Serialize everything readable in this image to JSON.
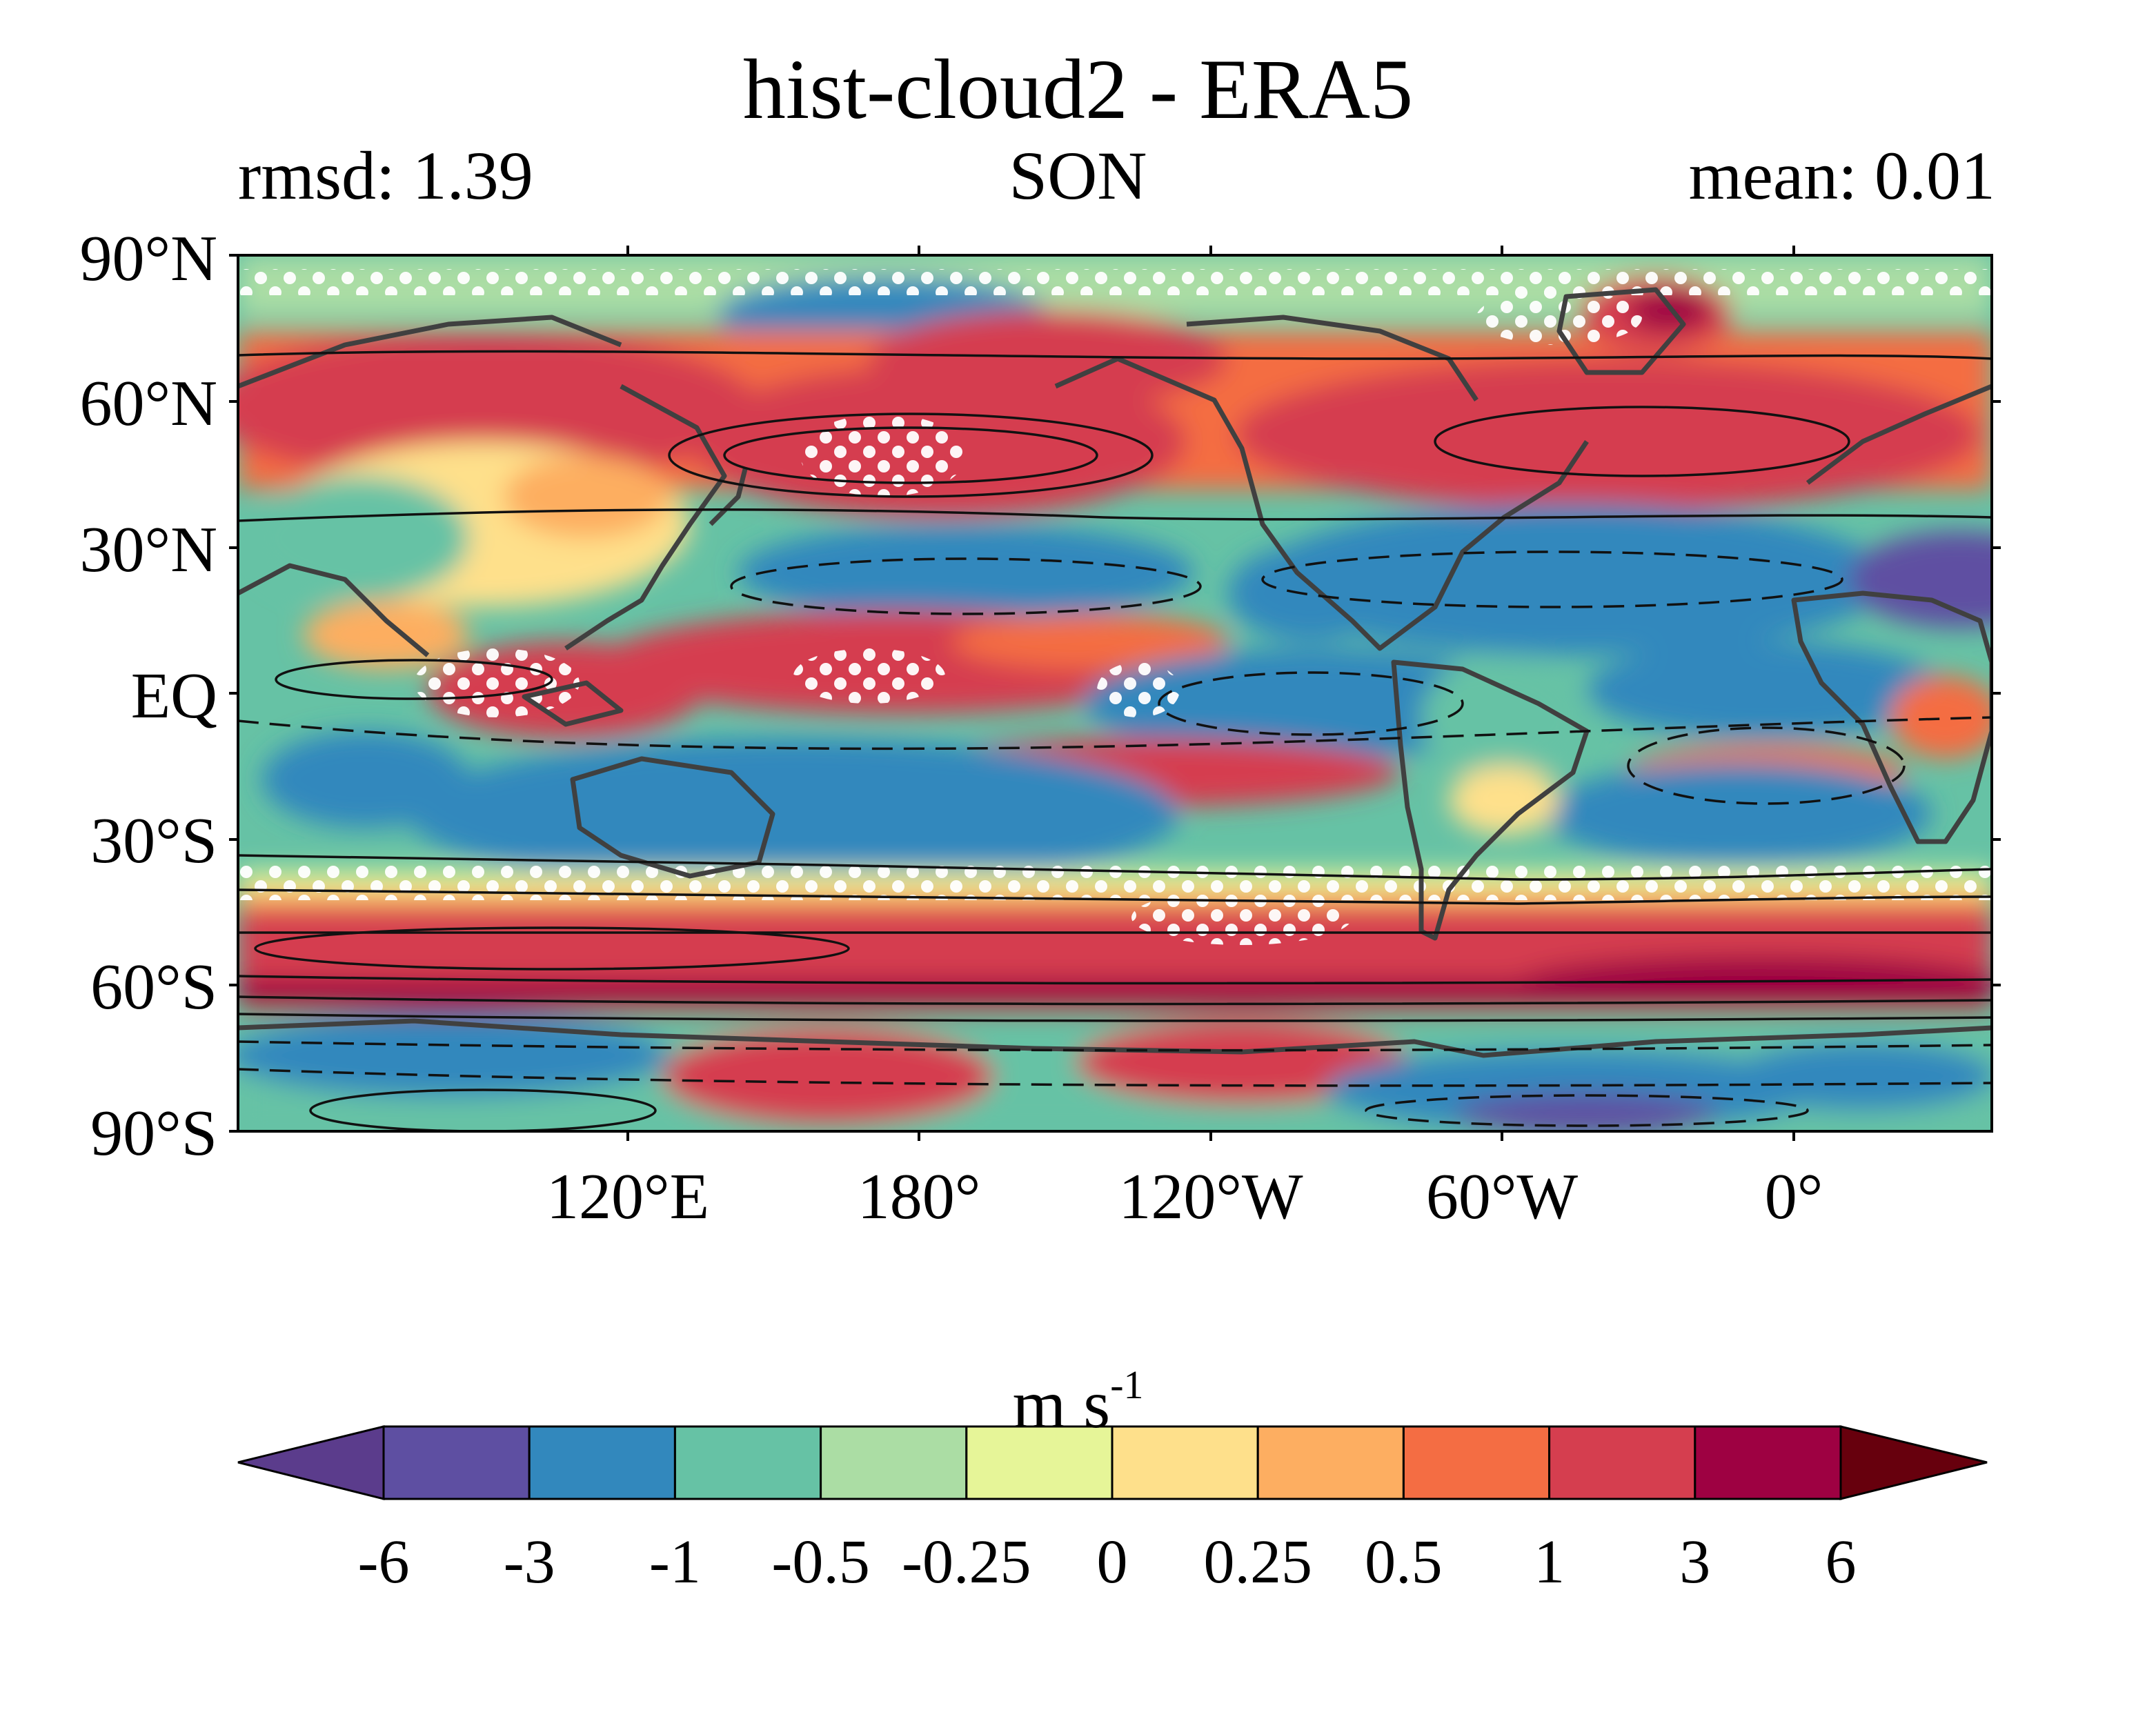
{
  "title": "hist-cloud2 - ERA5",
  "stats": {
    "rmsd_label": "rmsd: 1.39",
    "season": "SON",
    "mean_label": "mean: 0.01",
    "rmsd": 1.39,
    "mean": 0.01
  },
  "map": {
    "projection": "equirectangular",
    "lat_range": [
      -90,
      90
    ],
    "lon_range": [
      30,
      390
    ],
    "lat_ticks": [
      {
        "value": 90,
        "label": "90°N"
      },
      {
        "value": 60,
        "label": "60°N"
      },
      {
        "value": 30,
        "label": "30°N"
      },
      {
        "value": 0,
        "label": "EQ"
      },
      {
        "value": -30,
        "label": "30°S"
      },
      {
        "value": -60,
        "label": "60°S"
      },
      {
        "value": -90,
        "label": "90°S"
      }
    ],
    "lon_ticks": [
      {
        "value": 120,
        "label": "120°E"
      },
      {
        "value": 180,
        "label": "180°"
      },
      {
        "value": 240,
        "label": "120°W"
      },
      {
        "value": 300,
        "label": "60°W"
      },
      {
        "value": 360,
        "label": "0°"
      }
    ],
    "field": "wind speed difference (hist-cloud2 minus ERA5)",
    "overlays": [
      "filled contours",
      "black contour lines (solid positive, dashed negative)",
      "white stippling dots",
      "coastlines"
    ]
  },
  "colorbar": {
    "title": "m s",
    "title_superscript": "-1",
    "extend": "both",
    "levels": [
      "-6",
      "-3",
      "-1",
      "-0.5",
      "-0.25",
      "0",
      "0.25",
      "0.5",
      "1",
      "3",
      "6"
    ],
    "colors": [
      "#5e4fa2",
      "#3288bd",
      "#66c2a5",
      "#abdda4",
      "#e6f598",
      "#fee08b",
      "#fdae61",
      "#f46d43",
      "#d53e4f",
      "#9e0142"
    ],
    "under_color": "#5b3c8c",
    "over_color": "#67000d"
  }
}
